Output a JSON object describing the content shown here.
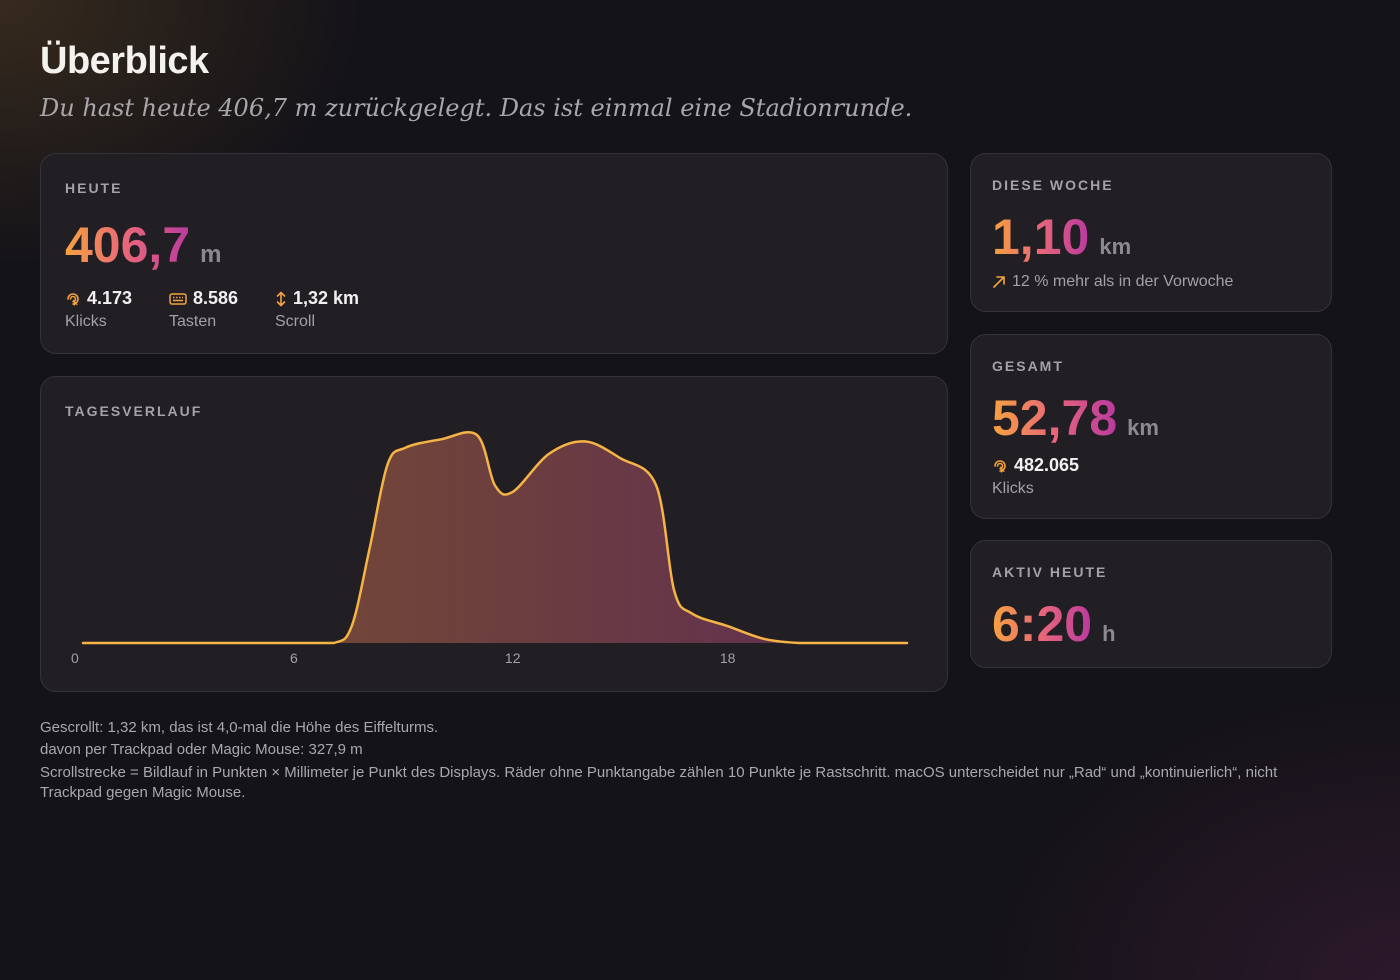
{
  "header": {
    "title": "Überblick",
    "subtitle": "Du hast heute 406,7 m zurückgelegt. Das ist einmal eine Stadionrunde."
  },
  "today": {
    "label": "HEUTE",
    "value": "406,7",
    "unit": "m",
    "stats": [
      {
        "icon": "click-icon",
        "value": "4.173",
        "label": "Klicks"
      },
      {
        "icon": "keyboard-icon",
        "value": "8.586",
        "label": "Tasten"
      },
      {
        "icon": "scroll-arrows-icon",
        "value": "1,32 km",
        "label": "Scroll"
      }
    ]
  },
  "timeline": {
    "label": "TAGESVERLAUF",
    "x_ticks": [
      "0",
      "6",
      "12",
      "18"
    ]
  },
  "week": {
    "label": "DIESE WOCHE",
    "value": "1,10",
    "unit": "km",
    "trend": "12 % mehr als in der Vorwoche",
    "trend_icon": "arrow-up-right-icon"
  },
  "total": {
    "label": "GESAMT",
    "value": "52,78",
    "unit": "km",
    "clicks_value": "482.065",
    "clicks_label": "Klicks",
    "icon": "click-icon"
  },
  "active": {
    "label": "AKTIV HEUTE",
    "value": "6:20",
    "unit": "h"
  },
  "footer": {
    "line1": "Gescrollt: 1,32 km, das ist 4,0-mal die Höhe des Eiffelturms.",
    "line2": "davon per Trackpad oder Magic Mouse: 327,9 m",
    "line3": "Scrollstrecke = Bildlauf in Punkten × Millimeter je Punkt des Displays. Räder ohne Punktangabe zählen 10 Punkte je Rastschritt. macOS unterscheidet nur „Rad“ und „kontinuierlich“, nicht Trackpad gegen Magic Mouse."
  },
  "colors": {
    "accent_start": "#f6a23f",
    "accent_mid": "#e8667a",
    "accent_end": "#b93a9f",
    "line": "#f5b445"
  },
  "chart_data": {
    "type": "area",
    "title": "TAGESVERLAUF",
    "xlabel": "",
    "ylabel": "",
    "xlim": [
      0,
      23
    ],
    "ylim": [
      0,
      1
    ],
    "x_ticks": [
      0,
      6,
      12,
      18
    ],
    "series": [
      {
        "x": [
          0,
          1,
          2,
          3,
          4,
          5,
          6,
          7,
          7.5,
          8,
          8.5,
          9,
          10,
          11,
          11.5,
          12,
          13,
          14,
          15,
          16,
          16.5,
          17,
          18,
          19,
          20,
          21,
          22,
          23
        ],
        "values": [
          0,
          0,
          0,
          0,
          0,
          0,
          0,
          0,
          0.08,
          0.45,
          0.85,
          0.93,
          0.97,
          0.99,
          0.75,
          0.72,
          0.9,
          0.96,
          0.88,
          0.75,
          0.25,
          0.14,
          0.08,
          0.02,
          0,
          0,
          0,
          0
        ]
      }
    ],
    "grid": false,
    "legend": "none"
  }
}
